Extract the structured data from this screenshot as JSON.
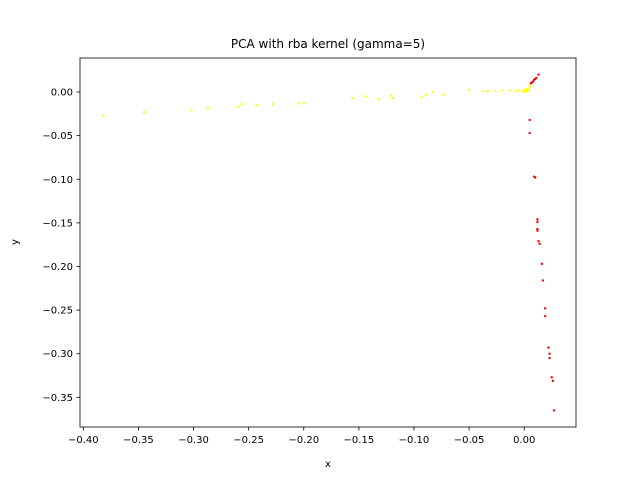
{
  "chart_data": {
    "type": "scatter",
    "title": "PCA with rba kernel (gamma=5)",
    "xlabel": "x",
    "ylabel": "y",
    "xlim": [
      -0.403,
      0.047
    ],
    "ylim": [
      -0.384,
      0.039
    ],
    "xticks": [
      -0.4,
      -0.35,
      -0.3,
      -0.25,
      -0.2,
      -0.15,
      -0.1,
      -0.05,
      0.0
    ],
    "xtick_labels": [
      "−0.40",
      "−0.35",
      "−0.30",
      "−0.25",
      "−0.20",
      "−0.15",
      "−0.10",
      "−0.05",
      "0.00"
    ],
    "yticks": [
      0.0,
      -0.05,
      -0.1,
      -0.15,
      -0.2,
      -0.25,
      -0.3,
      -0.35
    ],
    "ytick_labels": [
      "0.00",
      "−0.05",
      "−0.10",
      "−0.15",
      "−0.20",
      "−0.25",
      "−0.30",
      "−0.35"
    ],
    "grid": false,
    "series": [
      {
        "color": "#ffff00",
        "points": [
          [
            -0.382,
            -0.027
          ],
          [
            -0.345,
            -0.023
          ],
          [
            -0.302,
            -0.021
          ],
          [
            -0.287,
            -0.019
          ],
          [
            -0.26,
            -0.017
          ],
          [
            -0.256,
            -0.014
          ],
          [
            -0.243,
            -0.015
          ],
          [
            -0.228,
            -0.014
          ],
          [
            -0.205,
            -0.013
          ],
          [
            -0.2,
            -0.013
          ],
          [
            -0.156,
            -0.007
          ],
          [
            -0.144,
            -0.005
          ],
          [
            -0.132,
            -0.008
          ],
          [
            -0.121,
            -0.004
          ],
          [
            -0.119,
            -0.007
          ],
          [
            -0.093,
            -0.006
          ],
          [
            -0.089,
            -0.003
          ],
          [
            -0.083,
            0.0
          ],
          [
            -0.073,
            -0.003
          ],
          [
            -0.05,
            0.002
          ],
          [
            -0.037,
            0.001
          ],
          [
            -0.033,
            0.001
          ],
          [
            -0.026,
            0.001
          ],
          [
            -0.02,
            0.002
          ],
          [
            -0.013,
            0.002
          ],
          [
            -0.008,
            0.001
          ],
          [
            -0.005,
            0.002
          ],
          [
            -0.002,
            0.001
          ],
          [
            0.0,
            0.002
          ],
          [
            0.001,
            0.003
          ],
          [
            0.002,
            0.001
          ],
          [
            0.003,
            0.004
          ],
          [
            0.004,
            0.002
          ],
          [
            0.005,
            0.006
          ],
          [
            0.006,
            0.008
          ],
          [
            0.003,
            0.002
          ],
          [
            0.001,
            0.0
          ]
        ]
      },
      {
        "color": "#ff0000",
        "points": [
          [
            0.006,
            0.01
          ],
          [
            0.007,
            0.011
          ],
          [
            0.008,
            0.012
          ],
          [
            0.009,
            0.014
          ],
          [
            0.01,
            0.015
          ],
          [
            0.011,
            0.016
          ],
          [
            0.013,
            0.02
          ],
          [
            0.005,
            -0.032
          ],
          [
            0.005,
            -0.047
          ],
          [
            0.009,
            -0.097
          ],
          [
            0.01,
            -0.098
          ],
          [
            0.012,
            -0.146
          ],
          [
            0.012,
            -0.149
          ],
          [
            0.012,
            -0.157
          ],
          [
            0.012,
            -0.159
          ],
          [
            0.013,
            -0.171
          ],
          [
            0.014,
            -0.174
          ],
          [
            0.016,
            -0.197
          ],
          [
            0.017,
            -0.216
          ],
          [
            0.019,
            -0.248
          ],
          [
            0.019,
            -0.257
          ],
          [
            0.022,
            -0.293
          ],
          [
            0.023,
            -0.3
          ],
          [
            0.023,
            -0.305
          ],
          [
            0.025,
            -0.327
          ],
          [
            0.026,
            -0.331
          ],
          [
            0.027,
            -0.365
          ]
        ]
      }
    ]
  }
}
